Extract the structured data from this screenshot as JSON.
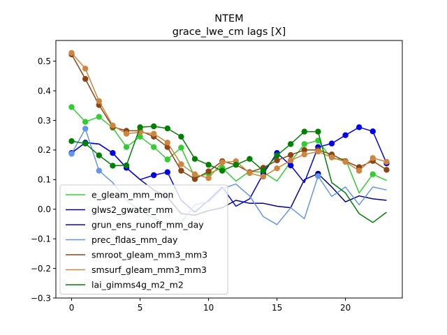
{
  "chart_data": {
    "type": "line",
    "title": "NTEM",
    "subtitle": "grace_lwe_cm lags [X]",
    "xlabel": "",
    "ylabel": "",
    "xlim": [
      -1.15,
      24.15
    ],
    "ylim": [
      -0.3,
      0.57
    ],
    "xticks": [
      0,
      5,
      10,
      15,
      20
    ],
    "yticks": [
      -0.3,
      -0.2,
      -0.1,
      0.0,
      0.1,
      0.2,
      0.3,
      0.4,
      0.5
    ],
    "grid": false,
    "legend_position": "lower-left",
    "x": [
      0,
      1,
      2,
      3,
      4,
      5,
      6,
      7,
      8,
      9,
      10,
      11,
      12,
      13,
      14,
      15,
      16,
      17,
      18,
      19,
      20,
      21,
      22,
      23
    ],
    "series": [
      {
        "name": "e_gleam_mm_mon",
        "color": "#32cd32",
        "values": [
          0.345,
          0.295,
          0.312,
          0.275,
          0.21,
          0.245,
          0.21,
          0.168,
          0.208,
          0.108,
          0.12,
          0.14,
          0.095,
          0.128,
          0.125,
          0.095,
          0.16,
          0.22,
          0.232,
          0.17,
          0.17,
          0.055,
          0.118,
          0.097
        ],
        "markers": [
          true,
          true,
          true,
          true,
          true,
          true,
          true,
          true,
          true,
          true,
          true,
          true,
          false,
          false,
          true,
          false,
          false,
          true,
          true,
          false,
          false,
          false,
          true,
          false
        ]
      },
      {
        "name": "glws2_gwater_mm",
        "color": "#00008b",
        "values": [
          0.19,
          0.225,
          0.22,
          0.19,
          0.14,
          0.1,
          0.065,
          0.04,
          -0.015,
          -0.02,
          -0.005,
          0.005,
          0.03,
          0.02,
          0.02,
          0.01,
          0.005,
          0.1,
          0.12,
          0.075,
          0.025,
          0.045,
          0.035,
          0.03
        ],
        "markers": [
          false,
          false,
          false,
          false,
          false,
          false,
          false,
          false,
          false,
          false,
          false,
          false,
          false,
          false,
          false,
          false,
          false,
          false,
          true,
          false,
          false,
          false,
          false,
          false
        ]
      },
      {
        "name": "grun_ens_runoff_mm_day",
        "color": "#0000ee",
        "values": [
          0.19,
          0.225,
          0.22,
          0.19,
          0.14,
          0.1,
          0.115,
          0.125,
          0.03,
          -0.01,
          0.03,
          0.075,
          0.01,
          0.035,
          0.12,
          0.19,
          0.148,
          0.09,
          0.21,
          0.222,
          0.25,
          0.277,
          0.263,
          0.155
        ],
        "markers": [
          true,
          true,
          false,
          true,
          true,
          false,
          true,
          true,
          false,
          false,
          false,
          false,
          false,
          false,
          true,
          true,
          true,
          false,
          true,
          true,
          true,
          true,
          true,
          true
        ]
      },
      {
        "name": "prec_fldas_mm_day",
        "color": "#6495ed",
        "values": [
          0.187,
          0.272,
          0.13,
          0.09,
          0.03,
          -0.005,
          -0.03,
          -0.05,
          -0.045,
          0.015,
          0.025,
          0.07,
          0.085,
          0.045,
          -0.025,
          -0.052,
          0.005,
          -0.032,
          0.112,
          0.043,
          0.075,
          0.015,
          0.075,
          0.065
        ],
        "markers": [
          true,
          true,
          true,
          false,
          false,
          false,
          false,
          false,
          false,
          false,
          false,
          false,
          false,
          false,
          false,
          false,
          false,
          false,
          true,
          false,
          false,
          false,
          false,
          false
        ]
      },
      {
        "name": "smroot_gleam_mm3_mm3",
        "color": "#8b4513",
        "values": [
          0.523,
          0.44,
          0.352,
          0.278,
          0.265,
          0.265,
          0.245,
          0.21,
          0.13,
          0.102,
          0.128,
          0.162,
          0.15,
          0.125,
          0.14,
          0.165,
          0.183,
          0.2,
          0.2,
          0.185,
          0.162,
          0.142,
          0.163,
          0.133
        ],
        "markers": [
          true,
          true,
          true,
          true,
          true,
          true,
          true,
          true,
          true,
          true,
          true,
          true,
          true,
          true,
          true,
          true,
          true,
          true,
          true,
          true,
          true,
          true,
          true,
          true
        ]
      },
      {
        "name": "smsurf_gleam_mm3_mm3",
        "color": "#cd853f",
        "values": [
          0.528,
          0.475,
          0.365,
          0.283,
          0.255,
          0.26,
          0.255,
          0.225,
          0.152,
          0.118,
          0.105,
          0.158,
          0.162,
          0.122,
          0.11,
          0.138,
          0.165,
          0.185,
          0.195,
          0.175,
          0.16,
          0.13,
          0.173,
          0.16
        ],
        "markers": [
          true,
          true,
          true,
          true,
          true,
          true,
          true,
          true,
          true,
          true,
          true,
          true,
          true,
          true,
          true,
          true,
          true,
          true,
          true,
          true,
          true,
          true,
          true,
          true
        ]
      },
      {
        "name": "lai_gimms4g_m2_m2",
        "color": "#008000",
        "values": [
          0.23,
          0.222,
          0.182,
          0.147,
          0.148,
          0.277,
          0.28,
          0.273,
          0.245,
          0.17,
          0.15,
          0.13,
          0.15,
          0.17,
          0.13,
          0.182,
          0.22,
          0.262,
          0.262,
          0.09,
          0.055,
          -0.015,
          -0.045,
          -0.01
        ],
        "markers": [
          true,
          true,
          true,
          true,
          true,
          true,
          true,
          true,
          true,
          true,
          true,
          true,
          true,
          true,
          true,
          true,
          true,
          true,
          true,
          false,
          false,
          false,
          false,
          false
        ]
      }
    ]
  }
}
